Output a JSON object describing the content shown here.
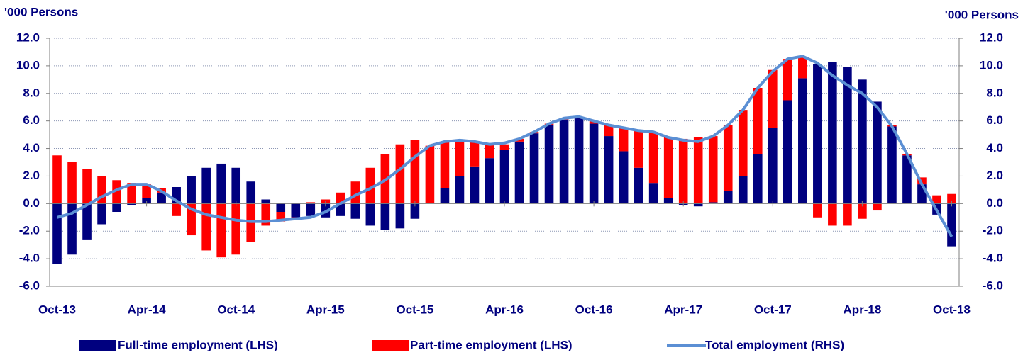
{
  "chart_data": {
    "type": "bar",
    "y_label": "'000 Persons",
    "y2_label": "'000 Persons",
    "categories": [
      "Oct-13",
      null,
      null,
      null,
      null,
      null,
      "Apr-14",
      null,
      null,
      null,
      null,
      null,
      "Oct-14",
      null,
      null,
      null,
      null,
      null,
      "Apr-15",
      null,
      null,
      null,
      null,
      null,
      "Oct-15",
      null,
      null,
      null,
      null,
      null,
      "Apr-16",
      null,
      null,
      null,
      null,
      null,
      "Oct-16",
      null,
      null,
      null,
      null,
      null,
      "Apr-17",
      null,
      null,
      null,
      null,
      null,
      "Oct-17",
      null,
      null,
      null,
      null,
      null,
      "Apr-18",
      null,
      null,
      null,
      null,
      null,
      "Oct-18"
    ],
    "series": [
      {
        "name": "Full-time employment (LHS)",
        "type": "bar",
        "color": "#00007f",
        "values": [
          -4.4,
          -3.7,
          -2.6,
          -1.5,
          -0.6,
          -0.1,
          0.4,
          0.8,
          1.2,
          2.0,
          2.6,
          2.9,
          2.6,
          1.6,
          0.3,
          -0.6,
          -1.0,
          -0.9,
          -1.0,
          -0.9,
          -1.1,
          -1.6,
          -1.9,
          -1.8,
          -1.1,
          0.0,
          1.1,
          2.0,
          2.7,
          3.3,
          3.9,
          4.5,
          5.1,
          5.7,
          6.1,
          6.2,
          5.8,
          4.9,
          3.8,
          2.6,
          1.5,
          0.4,
          -0.1,
          -0.2,
          0.1,
          0.9,
          2.0,
          3.6,
          5.5,
          7.5,
          9.1,
          10.1,
          10.3,
          9.9,
          9.0,
          7.4,
          5.6,
          3.5,
          1.4,
          -0.8,
          -3.1
        ]
      },
      {
        "name": "Part-time employment (LHS)",
        "type": "bar",
        "color": "#ff0000",
        "values": [
          3.5,
          3.0,
          2.5,
          2.0,
          1.7,
          1.5,
          1.0,
          0.3,
          -0.9,
          -2.3,
          -3.4,
          -3.9,
          -3.7,
          -2.8,
          -1.6,
          -0.7,
          -0.2,
          0.1,
          0.3,
          0.8,
          1.6,
          2.6,
          3.6,
          4.3,
          4.6,
          4.2,
          3.4,
          2.5,
          1.8,
          1.0,
          0.4,
          0.2,
          0.1,
          0.1,
          0.1,
          0.1,
          0.2,
          0.8,
          1.7,
          2.7,
          3.7,
          4.4,
          4.7,
          4.8,
          4.8,
          4.8,
          4.8,
          4.8,
          4.2,
          3.0,
          1.5,
          -1.0,
          -1.6,
          -1.6,
          -1.1,
          -0.5,
          0.1,
          0.1,
          0.5,
          0.6,
          0.7
        ]
      },
      {
        "name": "Total employment (RHS)",
        "type": "line",
        "axis": "y2",
        "color": "#5b8fd4",
        "values": [
          -1.0,
          -0.7,
          -0.1,
          0.5,
          1.0,
          1.4,
          1.4,
          0.9,
          0.2,
          -0.4,
          -0.8,
          -1.0,
          -1.2,
          -1.3,
          -1.3,
          -1.2,
          -1.1,
          -1.0,
          -0.6,
          0.0,
          0.6,
          1.1,
          1.7,
          2.5,
          3.4,
          4.2,
          4.5,
          4.6,
          4.5,
          4.3,
          4.4,
          4.7,
          5.2,
          5.8,
          6.2,
          6.3,
          6.0,
          5.7,
          5.5,
          5.3,
          5.2,
          4.8,
          4.6,
          4.5,
          4.9,
          5.7,
          6.8,
          8.4,
          9.6,
          10.5,
          10.7,
          10.2,
          9.3,
          8.6,
          8.0,
          7.0,
          5.6,
          3.6,
          1.4,
          -0.5,
          -2.4
        ]
      }
    ],
    "ylim": [
      -6,
      12
    ],
    "yticks": [
      {
        "value": -6,
        "label": "-6.0"
      },
      {
        "value": -4,
        "label": "-4.0"
      },
      {
        "value": -2,
        "label": "-2.0"
      },
      {
        "value": 0,
        "label": "0.0"
      },
      {
        "value": 2,
        "label": "2.0"
      },
      {
        "value": 4,
        "label": "4.0"
      },
      {
        "value": 6,
        "label": "6.0"
      },
      {
        "value": 8,
        "label": "8.0"
      },
      {
        "value": 10,
        "label": "10.0"
      },
      {
        "value": 12,
        "label": "12.0"
      }
    ],
    "y2lim": [
      -6,
      12
    ],
    "y2ticks": [
      {
        "value": -6,
        "label": "-6.0"
      },
      {
        "value": -4,
        "label": "-4.0"
      },
      {
        "value": -2,
        "label": "-2.0"
      },
      {
        "value": 0,
        "label": "0.0"
      },
      {
        "value": 2,
        "label": "2.0"
      },
      {
        "value": 4,
        "label": "4.0"
      },
      {
        "value": 6,
        "label": "6.0"
      },
      {
        "value": 8,
        "label": "8.0"
      },
      {
        "value": 10,
        "label": "10.0"
      },
      {
        "value": 12,
        "label": "12.0"
      }
    ],
    "grid": true
  }
}
